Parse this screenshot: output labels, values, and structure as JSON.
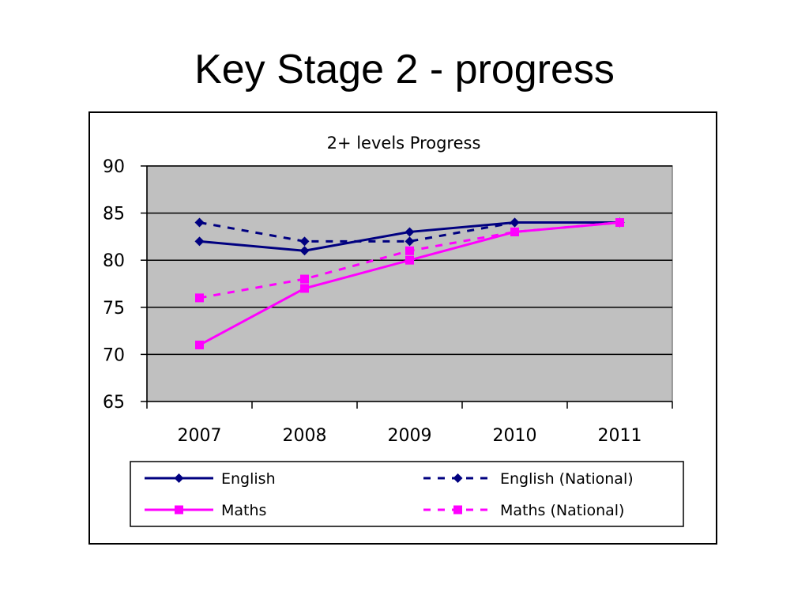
{
  "slide": {
    "title": "Key Stage 2 - progress"
  },
  "chart_data": {
    "type": "line",
    "title": "2+ levels Progress",
    "xlabel": "",
    "ylabel": "",
    "categories": [
      "2007",
      "2008",
      "2009",
      "2010",
      "2011"
    ],
    "ylim": [
      65,
      90
    ],
    "yticks": [
      65,
      70,
      75,
      80,
      85,
      90
    ],
    "grid": true,
    "plot_background": "#c0c0c0",
    "legend_position": "bottom",
    "series": [
      {
        "name": "English",
        "values": [
          82,
          81,
          83,
          84,
          84
        ],
        "color": "#000080",
        "dash": "solid",
        "marker": "diamond"
      },
      {
        "name": "English (National)",
        "values": [
          84,
          82,
          82,
          84,
          84
        ],
        "color": "#000080",
        "dash": "dashed",
        "marker": "diamond"
      },
      {
        "name": "Maths",
        "values": [
          71,
          77,
          80,
          83,
          84
        ],
        "color": "#ff00ff",
        "dash": "solid",
        "marker": "square"
      },
      {
        "name": "Maths (National)",
        "values": [
          76,
          78,
          81,
          83,
          84
        ],
        "color": "#ff00ff",
        "dash": "dashed",
        "marker": "square"
      }
    ]
  }
}
